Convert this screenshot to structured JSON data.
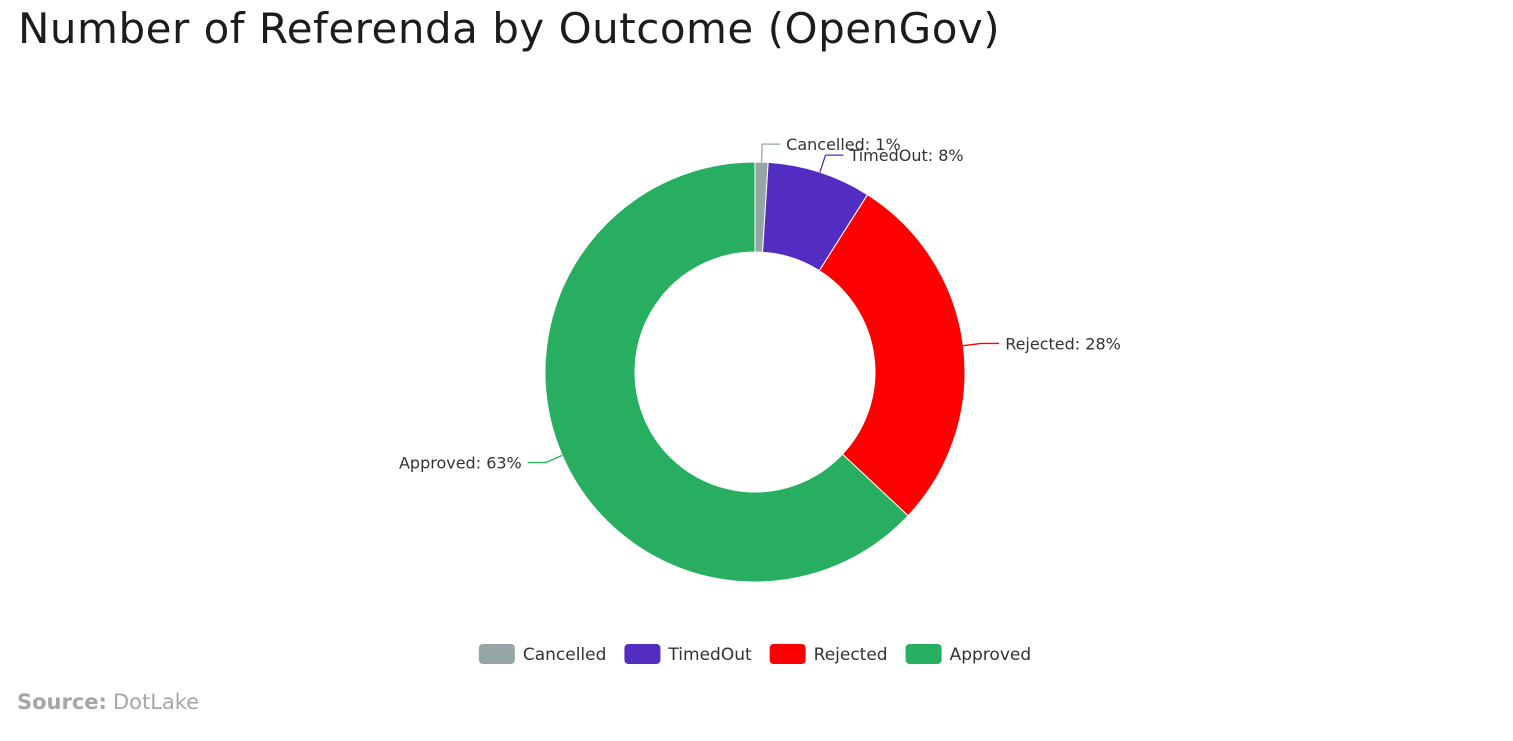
{
  "title": "Number of Referenda by Outcome (OpenGov)",
  "source": {
    "label": "Source:",
    "value": "DotLake"
  },
  "chart_data": {
    "type": "pie",
    "variant": "donut",
    "legend_position": "bottom",
    "slices": [
      {
        "name": "Cancelled",
        "value": 1,
        "label": "Cancelled: 1%",
        "color": "#95a5a6"
      },
      {
        "name": "TimedOut",
        "value": 8,
        "label": "TimedOut: 8%",
        "color": "#532cc1"
      },
      {
        "name": "Rejected",
        "value": 28,
        "label": "Rejected: 28%",
        "color": "#ff0000"
      },
      {
        "name": "Approved",
        "value": 63,
        "label": "Approved: 63%",
        "color": "#27ae60"
      }
    ]
  }
}
